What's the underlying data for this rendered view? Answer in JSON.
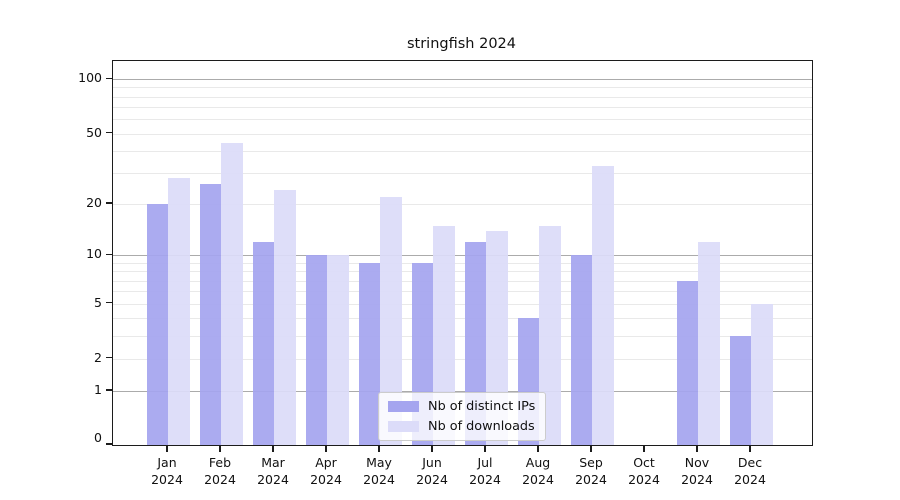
{
  "chart_data": {
    "type": "bar",
    "title": "stringfish 2024",
    "categories": [
      "Jan",
      "Feb",
      "Mar",
      "Apr",
      "May",
      "Jun",
      "Jul",
      "Aug",
      "Sep",
      "Oct",
      "Nov",
      "Dec"
    ],
    "category_year": "2024",
    "series": [
      {
        "name": "Nb of distinct IPs",
        "color": "#a5a5ef",
        "values": [
          20,
          26,
          12,
          10,
          9,
          9,
          12,
          4,
          10,
          0,
          7,
          3
        ]
      },
      {
        "name": "Nb of downloads",
        "color": "#dcdcf9",
        "values": [
          28,
          44,
          24,
          10,
          22,
          15,
          14,
          15,
          33,
          0,
          12,
          5
        ]
      }
    ],
    "yscale": "log(1+x)",
    "ylim": [
      0,
      126
    ],
    "y_tick_labels": [
      0,
      1,
      2,
      5,
      10,
      20,
      50,
      100
    ],
    "y_major_gridlines": [
      1,
      10,
      100
    ],
    "y_minor_gridlines": [
      2,
      3,
      4,
      5,
      6,
      7,
      8,
      9,
      20,
      30,
      40,
      50,
      60,
      70,
      80,
      90
    ],
    "grid": "both",
    "legend_position": "lower center"
  }
}
